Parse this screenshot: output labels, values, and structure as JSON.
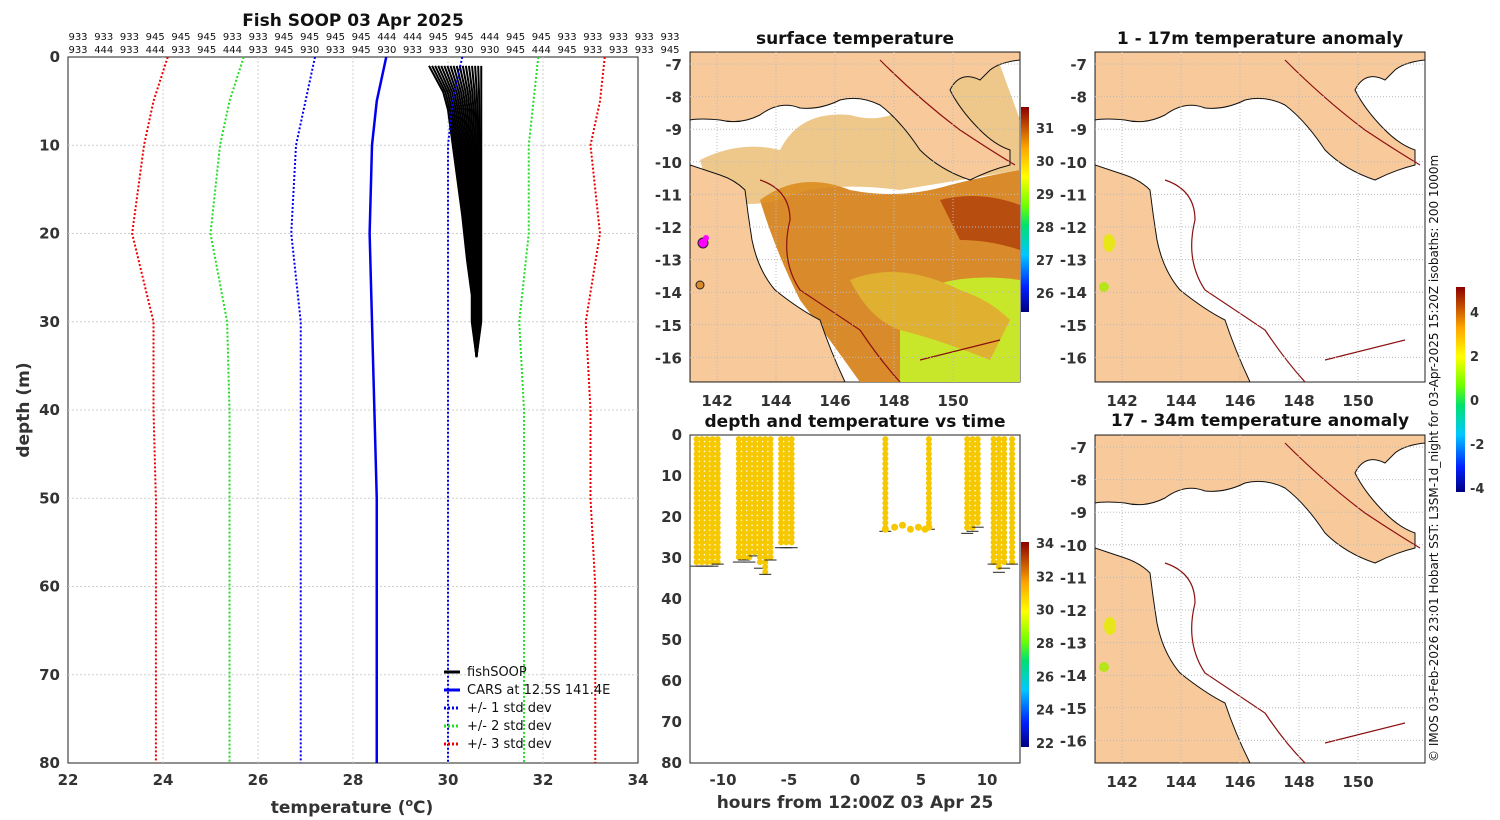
{
  "chart_data": [
    {
      "type": "line",
      "id": "profile",
      "title": "Fish SOOP 03 Apr 2025",
      "xlabel": "temperature",
      "xlabel_unit_prefix": "(",
      "xlabel_unit_sup": "o",
      "xlabel_unit_suffix": "C)",
      "ylabel": "depth (m)",
      "xlim": [
        22,
        34
      ],
      "ylim": [
        0,
        80
      ],
      "xticks": [
        22,
        24,
        26,
        28,
        30,
        32,
        34
      ],
      "yticks": [
        0,
        10,
        20,
        30,
        40,
        50,
        60,
        70,
        80
      ],
      "y_inverted": true,
      "grid": true,
      "station_ids_row1": [
        "933",
        "933",
        "933",
        "945",
        "945",
        "945",
        "933",
        "933",
        "945",
        "945",
        "945",
        "945",
        "444",
        "444",
        "945",
        "945",
        "444",
        "945",
        "945",
        "933",
        "933",
        "933",
        "933",
        "933"
      ],
      "station_ids_row2": [
        "933",
        "444",
        "933",
        "444",
        "933",
        "945",
        "444",
        "933",
        "945",
        "930",
        "933",
        "945",
        "930",
        "933",
        "933",
        "930",
        "930",
        "945",
        "444",
        "945",
        "933",
        "933",
        "933",
        "945"
      ],
      "legend_position": "bottom-right",
      "series": [
        {
          "name": "fishSOOP",
          "color": "#000000",
          "style": "solid",
          "depth": [
            1,
            2,
            4,
            6,
            10,
            14,
            18,
            23,
            27,
            30,
            34
          ],
          "temp_min": [
            29.6,
            29.7,
            29.9,
            30.0,
            30.1,
            30.2,
            30.3,
            30.4,
            30.5,
            30.5,
            30.6
          ],
          "temp_max": [
            30.7,
            30.7,
            30.7,
            30.7,
            30.7,
            30.7,
            30.7,
            30.7,
            30.7,
            30.7,
            30.6
          ]
        },
        {
          "name": "CARS at 12.5S 141.4E",
          "color": "#0000ee",
          "style": "solid",
          "depth": [
            0,
            5,
            10,
            20,
            30,
            40,
            50,
            60,
            70,
            80
          ],
          "temp": [
            28.7,
            28.5,
            28.4,
            28.35,
            28.4,
            28.45,
            28.5,
            28.5,
            28.5,
            28.5
          ]
        },
        {
          "name": "+/- 1 std dev",
          "color": "#0000ee",
          "style": "dotted",
          "depth": [
            0,
            5,
            10,
            20,
            30,
            40,
            50,
            60,
            70,
            80
          ],
          "lower": [
            27.2,
            27.0,
            26.8,
            26.7,
            26.9,
            26.9,
            26.9,
            26.9,
            26.9,
            26.9
          ],
          "upper": [
            30.3,
            30.1,
            30.0,
            30.0,
            30.0,
            30.0,
            30.0,
            30.0,
            30.0,
            30.0
          ]
        },
        {
          "name": "+/- 2 std dev",
          "color": "#22dd22",
          "style": "dotted",
          "depth": [
            0,
            5,
            10,
            20,
            30,
            40,
            50,
            60,
            70,
            80
          ],
          "lower": [
            25.7,
            25.4,
            25.2,
            25.0,
            25.35,
            25.4,
            25.4,
            25.4,
            25.4,
            25.4
          ],
          "upper": [
            31.9,
            31.8,
            31.7,
            31.7,
            31.5,
            31.6,
            31.6,
            31.6,
            31.6,
            31.6
          ]
        },
        {
          "name": "+/- 3 std dev",
          "color": "#ee0000",
          "style": "dotted",
          "depth": [
            0,
            5,
            10,
            20,
            30,
            40,
            50,
            60,
            70,
            80
          ],
          "lower": [
            24.1,
            23.8,
            23.6,
            23.35,
            23.8,
            23.8,
            23.85,
            23.85,
            23.85,
            23.85
          ],
          "upper": [
            33.3,
            33.2,
            33.0,
            33.2,
            32.9,
            33.0,
            33.0,
            33.1,
            33.1,
            33.1
          ]
        }
      ]
    },
    {
      "type": "heatmap",
      "id": "surface",
      "title": "surface temperature",
      "xticks": [
        "142",
        "144",
        "146",
        "148",
        "150"
      ],
      "yticks": [
        "-7",
        "-8",
        "-9",
        "-10",
        "-11",
        "-12",
        "-13",
        "-14",
        "-15",
        "-16"
      ],
      "colorbar_ticks": [
        "26",
        "27",
        "28",
        "29",
        "30",
        "31"
      ]
    },
    {
      "type": "heatmap",
      "id": "anom1",
      "title": "1 - 17m temperature anomaly",
      "xticks": [
        "142",
        "144",
        "146",
        "148",
        "150"
      ],
      "yticks": [
        "-7",
        "-8",
        "-9",
        "-10",
        "-11",
        "-12",
        "-13",
        "-14",
        "-15",
        "-16"
      ],
      "colorbar_ticks": [
        "4",
        "2",
        "0",
        "-2",
        "-4"
      ]
    },
    {
      "type": "heatmap",
      "id": "anom2",
      "title": "17 - 34m temperature anomaly",
      "xticks": [
        "142",
        "144",
        "146",
        "148",
        "150"
      ],
      "yticks": [
        "-7",
        "-8",
        "-9",
        "-10",
        "-11",
        "-12",
        "-13",
        "-14",
        "-15",
        "-16"
      ]
    },
    {
      "type": "scatter",
      "id": "timeseries",
      "title": "depth and temperature vs time",
      "xlabel": "hours from 12:00Z 03 Apr 25",
      "xlim": [
        -12.5,
        12.5
      ],
      "ylim": [
        0,
        80
      ],
      "xticks": [
        -10,
        -5,
        0,
        5,
        10
      ],
      "yticks": [
        0,
        10,
        20,
        30,
        40,
        50,
        60,
        70,
        80
      ],
      "y_inverted": true,
      "colorbar_ticks": [
        "34",
        "32",
        "30",
        "28",
        "26",
        "24",
        "22"
      ],
      "point_color": "#f5c800",
      "profiles": [
        {
          "hours": -12.0,
          "max_depth": 31.5
        },
        {
          "hours": -11.6,
          "max_depth": 31.5
        },
        {
          "hours": -11.2,
          "max_depth": 31.5
        },
        {
          "hours": -10.8,
          "max_depth": 31.5
        },
        {
          "hours": -10.4,
          "max_depth": 31.0
        },
        {
          "hours": -8.8,
          "max_depth": 30.5
        },
        {
          "hours": -8.4,
          "max_depth": 30.0
        },
        {
          "hours": -8.0,
          "max_depth": 30.5
        },
        {
          "hours": -7.6,
          "max_depth": 29.0
        },
        {
          "hours": -7.2,
          "max_depth": 32.0
        },
        {
          "hours": -6.8,
          "max_depth": 33.5
        },
        {
          "hours": -6.4,
          "max_depth": 30.0
        },
        {
          "hours": -5.6,
          "max_depth": 27.0
        },
        {
          "hours": -5.2,
          "max_depth": 27.0
        },
        {
          "hours": -4.8,
          "max_depth": 27.0
        },
        {
          "hours": 2.3,
          "max_depth": 23.0
        },
        {
          "hours": 5.6,
          "max_depth": 22.5
        },
        {
          "hours": 8.5,
          "max_depth": 23.5
        },
        {
          "hours": 8.9,
          "max_depth": 23.0
        },
        {
          "hours": 9.3,
          "max_depth": 22.0
        },
        {
          "hours": 10.5,
          "max_depth": 31.0
        },
        {
          "hours": 10.9,
          "max_depth": 33.0
        },
        {
          "hours": 11.3,
          "max_depth": 32.0
        },
        {
          "hours": 11.9,
          "max_depth": 31.0
        }
      ],
      "bottom_run": {
        "hours": [
          2.3,
          3.0,
          3.6,
          4.2,
          4.8,
          5.3,
          5.6
        ],
        "depth": [
          23,
          22.5,
          22,
          23,
          22.5,
          23,
          22.5
        ]
      }
    }
  ],
  "side_note": "© IMOS 03-Feb-2026 23:01 Hobart SST: L3SM-1d_night for 03-Apr-2025 15:20Z isobaths: 200  1000m"
}
